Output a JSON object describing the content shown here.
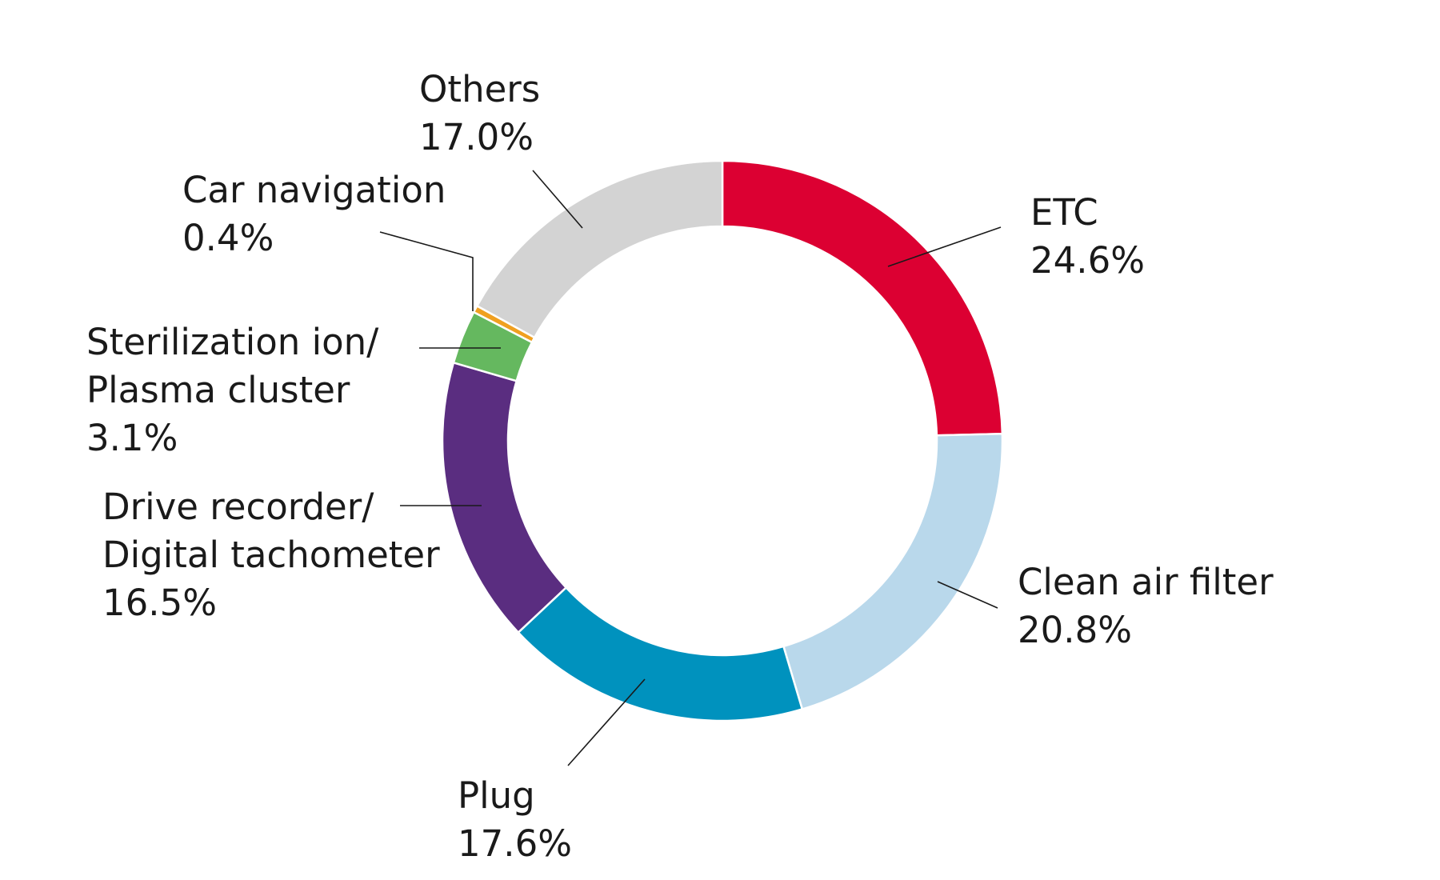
{
  "chart_data": {
    "type": "pie",
    "variant": "donut",
    "slices": [
      {
        "label": "ETC",
        "value": 24.6,
        "value_label": "24.6%",
        "color": "#dc0032"
      },
      {
        "label": "Clean air filter",
        "value": 20.8,
        "value_label": "20.8%",
        "color": "#b9d8eb"
      },
      {
        "label": "Plug",
        "value": 17.6,
        "value_label": "17.6%",
        "color": "#0092be"
      },
      {
        "label": "Drive recorder/ Digital tachometer",
        "label_lines": [
          "Drive recorder/",
          "Digital tachometer"
        ],
        "value": 16.5,
        "value_label": "16.5%",
        "color": "#5a2d80"
      },
      {
        "label": "Sterilization ion/ Plasma cluster",
        "label_lines": [
          "Sterilization ion/",
          "Plasma cluster"
        ],
        "value": 3.1,
        "value_label": "3.1%",
        "color": "#65b85f"
      },
      {
        "label": "Car navigation",
        "value": 0.4,
        "value_label": "0.4%",
        "color": "#f0a020"
      },
      {
        "label": "Others",
        "value": 17.0,
        "value_label": "17.0%",
        "color": "#d3d3d3"
      }
    ],
    "start": "12 o'clock",
    "direction": "clockwise",
    "legend": "none (callout labels)"
  }
}
